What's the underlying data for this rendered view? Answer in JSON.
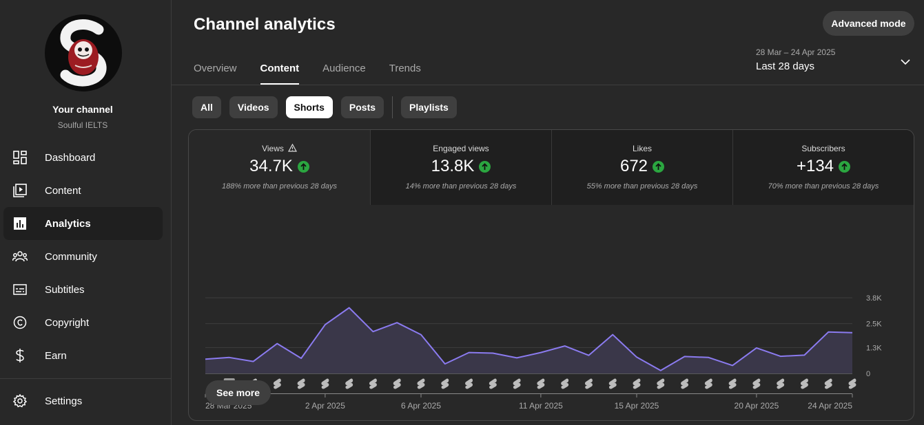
{
  "channel": {
    "name": "Your channel",
    "handle": "Soulful IELTS"
  },
  "nav": [
    {
      "label": "Dashboard",
      "icon": "dashboard-icon"
    },
    {
      "label": "Content",
      "icon": "content-icon"
    },
    {
      "label": "Analytics",
      "icon": "analytics-icon",
      "active": true
    },
    {
      "label": "Community",
      "icon": "community-icon"
    },
    {
      "label": "Subtitles",
      "icon": "subtitles-icon"
    },
    {
      "label": "Copyright",
      "icon": "copyright-icon"
    },
    {
      "label": "Earn",
      "icon": "earn-icon"
    }
  ],
  "settings": {
    "label": "Settings",
    "icon": "gear-icon"
  },
  "header": {
    "title": "Channel analytics",
    "advanced_mode": "Advanced mode",
    "tabs": [
      "Overview",
      "Content",
      "Audience",
      "Trends"
    ],
    "active_tab": "Content",
    "date_range": "28 Mar – 24 Apr 2025",
    "period": "Last 28 days"
  },
  "filters": [
    "All",
    "Videos",
    "Shorts",
    "Posts",
    "Playlists"
  ],
  "active_filter": "Shorts",
  "metrics": [
    {
      "label": "Views",
      "value": "34.7K",
      "note": "188% more than previous 28 days"
    },
    {
      "label": "Engaged views",
      "value": "13.8K",
      "note": "14% more than previous 28 days"
    },
    {
      "label": "Likes",
      "value": "672",
      "note": "55% more than previous 28 days"
    },
    {
      "label": "Subscribers",
      "value": "+134",
      "note": "70% more than previous 28 days"
    }
  ],
  "see_more": "See more",
  "colors": {
    "line": "#8b7bf0",
    "up": "#2ba640"
  },
  "chart_data": {
    "type": "area",
    "title": "Views",
    "x": [
      "28 Mar",
      "29 Mar",
      "30 Mar",
      "31 Mar",
      "1 Apr",
      "2 Apr",
      "3 Apr",
      "4 Apr",
      "5 Apr",
      "6 Apr",
      "7 Apr",
      "8 Apr",
      "9 Apr",
      "10 Apr",
      "11 Apr",
      "12 Apr",
      "13 Apr",
      "14 Apr",
      "15 Apr",
      "16 Apr",
      "17 Apr",
      "18 Apr",
      "19 Apr",
      "20 Apr",
      "21 Apr",
      "22 Apr",
      "23 Apr",
      "24 Apr"
    ],
    "values": [
      720,
      800,
      600,
      1500,
      760,
      2450,
      3300,
      2100,
      2550,
      1950,
      480,
      1050,
      1020,
      780,
      1050,
      1380,
      910,
      1950,
      820,
      150,
      850,
      800,
      400,
      1280,
      860,
      920,
      2080,
      2050
    ],
    "x_tick_labels": [
      "28 Mar 2025",
      "2 Apr 2025",
      "6 Apr 2025",
      "11 Apr 2025",
      "15 Apr 2025",
      "20 Apr 2025",
      "24 Apr 2025"
    ],
    "x_tick_indices": [
      0,
      5,
      9,
      14,
      18,
      23,
      27
    ],
    "y_ticks": [
      0,
      1300,
      2500,
      3800
    ],
    "y_tick_labels": [
      "0",
      "1.3K",
      "2.5K",
      "3.8K"
    ],
    "ylim": [
      0,
      3800
    ],
    "markers": {
      "badge_index": 1,
      "badge_label": "2"
    }
  }
}
